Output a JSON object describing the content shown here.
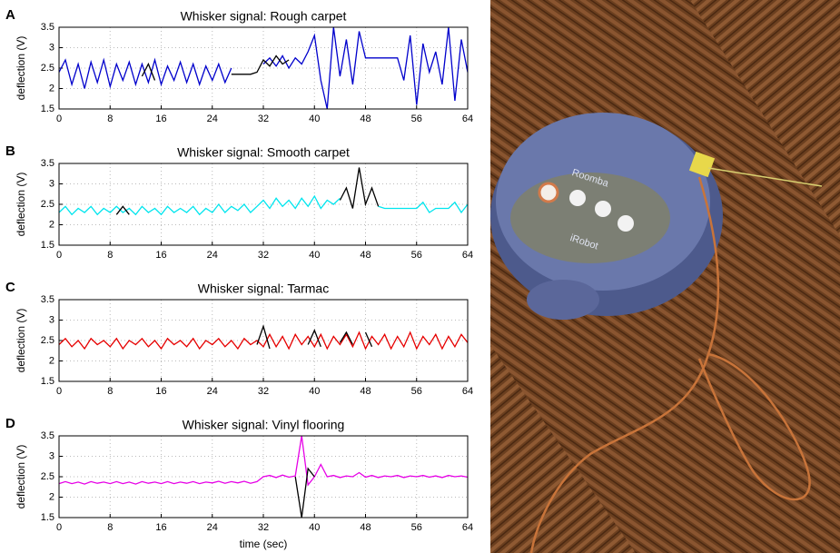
{
  "chart_data": [
    {
      "type": "line",
      "panel": "A",
      "title": "Whisker signal: Rough carpet",
      "ylabel": "deflection (V)",
      "x": [
        0,
        1,
        2,
        3,
        4,
        5,
        6,
        7,
        8,
        9,
        10,
        11,
        12,
        13,
        14,
        15,
        16,
        17,
        18,
        19,
        20,
        21,
        22,
        23,
        24,
        25,
        26,
        27,
        28,
        29,
        30,
        31,
        32,
        33,
        34,
        35,
        36,
        37,
        38,
        39,
        40,
        41,
        42,
        43,
        44,
        45,
        46,
        47,
        48,
        49,
        50,
        51,
        52,
        53,
        54,
        55,
        56,
        57,
        58,
        59,
        60,
        61,
        62,
        63,
        64
      ],
      "series": [
        {
          "color": "#0000cc",
          "values": [
            2.4,
            2.7,
            2.1,
            2.6,
            2.0,
            2.65,
            2.15,
            2.7,
            2.05,
            2.6,
            2.2,
            2.65,
            2.1,
            2.6,
            2.15,
            2.7,
            2.1,
            2.55,
            2.2,
            2.65,
            2.15,
            2.6,
            2.1,
            2.55,
            2.2,
            2.6,
            2.15,
            2.5,
            null,
            null,
            null,
            null,
            2.6,
            2.75,
            2.55,
            2.8,
            2.5,
            2.75,
            2.6,
            2.9,
            3.3,
            2.2,
            1.5,
            3.5,
            2.3,
            3.2,
            2.1,
            3.4,
            2.75,
            2.75,
            2.75,
            2.75,
            2.75,
            2.75,
            2.2,
            3.3,
            1.6,
            3.1,
            2.4,
            2.9,
            2.1,
            3.5,
            1.7,
            3.2,
            2.4
          ]
        },
        {
          "color": "#000000",
          "values": [
            null,
            null,
            null,
            null,
            null,
            null,
            null,
            null,
            null,
            null,
            null,
            null,
            null,
            2.3,
            2.6,
            2.2,
            null,
            null,
            null,
            null,
            null,
            null,
            null,
            null,
            null,
            null,
            null,
            2.35,
            2.35,
            2.35,
            2.35,
            2.4,
            2.7,
            2.55,
            2.8,
            2.6,
            2.7,
            null,
            null,
            null,
            null,
            null,
            null,
            null,
            null,
            null,
            null,
            null,
            null,
            null,
            null,
            null,
            null,
            null,
            null,
            null,
            null,
            null,
            null,
            null,
            null,
            null,
            null,
            null,
            null
          ]
        }
      ],
      "xlim": [
        0,
        64
      ],
      "xticks": [
        0,
        8,
        16,
        24,
        32,
        40,
        48,
        56,
        64
      ],
      "ylim": [
        1.5,
        3.5
      ],
      "yticks": [
        1.5,
        2,
        2.5,
        3,
        3.5
      ],
      "grid": true
    },
    {
      "type": "line",
      "panel": "B",
      "title": "Whisker signal: Smooth carpet",
      "ylabel": "deflection (V)",
      "x": [
        0,
        1,
        2,
        3,
        4,
        5,
        6,
        7,
        8,
        9,
        10,
        11,
        12,
        13,
        14,
        15,
        16,
        17,
        18,
        19,
        20,
        21,
        22,
        23,
        24,
        25,
        26,
        27,
        28,
        29,
        30,
        31,
        32,
        33,
        34,
        35,
        36,
        37,
        38,
        39,
        40,
        41,
        42,
        43,
        44,
        45,
        46,
        47,
        48,
        49,
        50,
        51,
        52,
        53,
        54,
        55,
        56,
        57,
        58,
        59,
        60,
        61,
        62,
        63,
        64
      ],
      "series": [
        {
          "color": "#00e5ee",
          "values": [
            2.3,
            2.45,
            2.25,
            2.4,
            2.3,
            2.45,
            2.25,
            2.4,
            2.3,
            2.45,
            2.3,
            2.4,
            2.25,
            2.45,
            2.3,
            2.4,
            2.25,
            2.45,
            2.3,
            2.4,
            2.3,
            2.45,
            2.25,
            2.4,
            2.3,
            2.5,
            2.3,
            2.45,
            2.35,
            2.5,
            2.3,
            2.45,
            2.6,
            2.4,
            2.65,
            2.45,
            2.6,
            2.4,
            2.65,
            2.45,
            2.7,
            2.4,
            2.6,
            2.5,
            2.65,
            null,
            null,
            null,
            null,
            null,
            2.45,
            2.4,
            2.4,
            2.4,
            2.4,
            2.4,
            2.4,
            2.55,
            2.3,
            2.4,
            2.4,
            2.4,
            2.55,
            2.3,
            2.5
          ]
        },
        {
          "color": "#000000",
          "values": [
            null,
            null,
            null,
            null,
            null,
            null,
            null,
            null,
            null,
            2.25,
            2.45,
            2.25,
            null,
            null,
            null,
            null,
            null,
            null,
            null,
            null,
            null,
            null,
            null,
            null,
            null,
            null,
            null,
            null,
            null,
            null,
            null,
            null,
            null,
            null,
            null,
            null,
            null,
            null,
            null,
            null,
            null,
            null,
            null,
            null,
            2.6,
            2.9,
            2.4,
            3.4,
            2.5,
            2.9,
            2.45,
            null,
            null,
            null,
            null,
            null,
            null,
            null,
            null,
            null,
            null,
            null,
            null,
            null,
            null
          ]
        }
      ],
      "xlim": [
        0,
        64
      ],
      "xticks": [
        0,
        8,
        16,
        24,
        32,
        40,
        48,
        56,
        64
      ],
      "ylim": [
        1.5,
        3.5
      ],
      "yticks": [
        1.5,
        2,
        2.5,
        3,
        3.5
      ],
      "grid": true
    },
    {
      "type": "line",
      "panel": "C",
      "title": "Whisker signal: Tarmac",
      "ylabel": "deflection (V)",
      "x": [
        0,
        1,
        2,
        3,
        4,
        5,
        6,
        7,
        8,
        9,
        10,
        11,
        12,
        13,
        14,
        15,
        16,
        17,
        18,
        19,
        20,
        21,
        22,
        23,
        24,
        25,
        26,
        27,
        28,
        29,
        30,
        31,
        32,
        33,
        34,
        35,
        36,
        37,
        38,
        39,
        40,
        41,
        42,
        43,
        44,
        45,
        46,
        47,
        48,
        49,
        50,
        51,
        52,
        53,
        54,
        55,
        56,
        57,
        58,
        59,
        60,
        61,
        62,
        63,
        64
      ],
      "series": [
        {
          "color": "#e60000",
          "values": [
            2.4,
            2.55,
            2.35,
            2.5,
            2.3,
            2.55,
            2.4,
            2.5,
            2.35,
            2.55,
            2.3,
            2.5,
            2.4,
            2.55,
            2.35,
            2.5,
            2.3,
            2.55,
            2.4,
            2.5,
            2.35,
            2.55,
            2.3,
            2.5,
            2.4,
            2.55,
            2.35,
            2.5,
            2.3,
            2.55,
            2.4,
            2.5,
            2.35,
            2.65,
            2.35,
            2.6,
            2.3,
            2.65,
            2.4,
            2.6,
            2.35,
            2.65,
            2.3,
            2.6,
            2.4,
            2.65,
            2.35,
            2.7,
            2.3,
            2.6,
            2.4,
            2.65,
            2.3,
            2.6,
            2.35,
            2.7,
            2.3,
            2.6,
            2.4,
            2.65,
            2.3,
            2.6,
            2.35,
            2.65,
            2.45
          ]
        },
        {
          "color": "#000000",
          "values": [
            null,
            null,
            null,
            null,
            null,
            null,
            null,
            null,
            null,
            null,
            null,
            null,
            null,
            null,
            null,
            null,
            null,
            null,
            null,
            null,
            null,
            null,
            null,
            null,
            null,
            null,
            null,
            null,
            null,
            null,
            null,
            2.4,
            2.85,
            2.3,
            null,
            null,
            null,
            null,
            null,
            2.4,
            2.75,
            2.35,
            null,
            null,
            2.45,
            2.7,
            2.4,
            null,
            2.7,
            2.35,
            null,
            null,
            null,
            null,
            null,
            null,
            null,
            null,
            null,
            null,
            null,
            null,
            null,
            null,
            null
          ]
        }
      ],
      "xlim": [
        0,
        64
      ],
      "xticks": [
        0,
        8,
        16,
        24,
        32,
        40,
        48,
        56,
        64
      ],
      "ylim": [
        1.5,
        3.5
      ],
      "yticks": [
        1.5,
        2,
        2.5,
        3,
        3.5
      ],
      "grid": true
    },
    {
      "type": "line",
      "panel": "D",
      "title": "Whisker signal: Vinyl flooring",
      "ylabel": "deflection (V)",
      "xlabel": "time (sec)",
      "x": [
        0,
        1,
        2,
        3,
        4,
        5,
        6,
        7,
        8,
        9,
        10,
        11,
        12,
        13,
        14,
        15,
        16,
        17,
        18,
        19,
        20,
        21,
        22,
        23,
        24,
        25,
        26,
        27,
        28,
        29,
        30,
        31,
        32,
        33,
        34,
        35,
        36,
        37,
        38,
        39,
        40,
        41,
        42,
        43,
        44,
        45,
        46,
        47,
        48,
        49,
        50,
        51,
        52,
        53,
        54,
        55,
        56,
        57,
        58,
        59,
        60,
        61,
        62,
        63,
        64
      ],
      "series": [
        {
          "color": "#e600e6",
          "values": [
            2.33,
            2.38,
            2.33,
            2.37,
            2.32,
            2.38,
            2.34,
            2.37,
            2.33,
            2.38,
            2.33,
            2.37,
            2.32,
            2.38,
            2.34,
            2.37,
            2.33,
            2.38,
            2.33,
            2.37,
            2.34,
            2.38,
            2.33,
            2.37,
            2.35,
            2.39,
            2.34,
            2.38,
            2.35,
            2.39,
            2.34,
            2.38,
            2.5,
            2.53,
            2.48,
            2.54,
            2.49,
            2.52,
            3.5,
            2.3,
            2.5,
            2.8,
            2.5,
            2.53,
            2.48,
            2.52,
            2.5,
            2.6,
            2.49,
            2.53,
            2.48,
            2.52,
            2.5,
            2.53,
            2.48,
            2.52,
            2.5,
            2.53,
            2.49,
            2.52,
            2.48,
            2.53,
            2.5,
            2.52,
            2.49
          ]
        },
        {
          "color": "#000000",
          "values": [
            null,
            null,
            null,
            null,
            null,
            null,
            null,
            null,
            null,
            null,
            null,
            null,
            null,
            null,
            null,
            null,
            null,
            null,
            null,
            null,
            null,
            null,
            null,
            null,
            null,
            null,
            null,
            null,
            null,
            null,
            null,
            null,
            null,
            null,
            null,
            null,
            null,
            2.5,
            1.5,
            2.7,
            2.5,
            null,
            null,
            null,
            null,
            null,
            null,
            null,
            null,
            null,
            null,
            null,
            null,
            null,
            null,
            null,
            null,
            null,
            null,
            null,
            null,
            null,
            null,
            null,
            null
          ]
        }
      ],
      "xlim": [
        0,
        64
      ],
      "xticks": [
        0,
        8,
        16,
        24,
        32,
        40,
        48,
        56,
        64
      ],
      "ylim": [
        1.5,
        3.5
      ],
      "yticks": [
        1.5,
        2,
        2.5,
        3,
        3.5
      ],
      "grid": true
    }
  ],
  "photo": {
    "labels": [
      "Roomba",
      "iRobot"
    ]
  }
}
